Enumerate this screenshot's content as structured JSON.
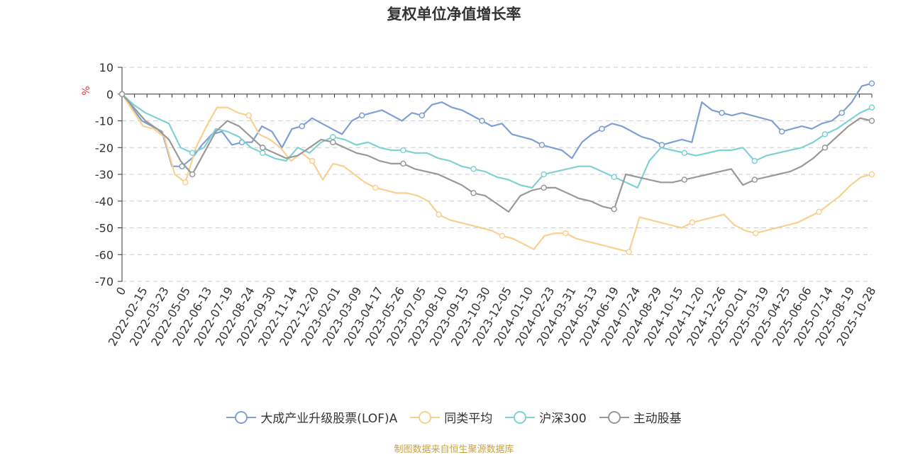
{
  "chart_data": {
    "type": "line",
    "title": "复权单位净值增长率",
    "ylabel": "%",
    "ylim": [
      -70,
      10
    ],
    "yticks": [
      10,
      0,
      -10,
      -20,
      -30,
      -40,
      -50,
      -60,
      -70
    ],
    "grid": true,
    "legend_position": "bottom",
    "x_start_label": "0",
    "x_tick_labels": [
      "2022-02-15",
      "2022-03-23",
      "2022-05-05",
      "2022-06-13",
      "2022-07-19",
      "2022-08-24",
      "2022-09-30",
      "2022-11-14",
      "2022-12-20",
      "2023-02-01",
      "2023-03-09",
      "2023-04-17",
      "2023-05-26",
      "2023-07-05",
      "2023-08-10",
      "2023-09-15",
      "2023-10-30",
      "2023-12-05",
      "2024-01-10",
      "2024-02-23",
      "2024-03-31",
      "2024-05-13",
      "2024-06-19",
      "2024-07-24",
      "2024-08-29",
      "2024-10-15",
      "2024-11-20",
      "2024-12-26",
      "2025-02-01",
      "2025-03-19",
      "2025-04-25",
      "2025-06-06",
      "2025-07-14",
      "2025-08-19",
      "2025-10-28"
    ],
    "series": [
      {
        "name": "大成产业升级股票(LOF)A",
        "color": "#7f9fd4",
        "values": [
          0,
          -5,
          -10,
          -12,
          -14,
          -27,
          -27,
          -24,
          -19,
          -15,
          -14,
          -19,
          -18,
          -18,
          -12,
          -14,
          -20,
          -13,
          -12,
          -9,
          -11,
          -13,
          -15,
          -10,
          -8,
          -7,
          -6,
          -8,
          -10,
          -7,
          -8,
          -4,
          -3,
          -5,
          -6,
          -8,
          -10,
          -12,
          -11,
          -15,
          -16,
          -17,
          -19,
          -20,
          -21,
          -24,
          -18,
          -15,
          -13,
          -11,
          -12,
          -14,
          -16,
          -17,
          -19,
          -18,
          -17,
          -18,
          -3,
          -6,
          -7,
          -8,
          -7,
          -8,
          -9,
          -10,
          -14,
          -13,
          -12,
          -13,
          -11,
          -10,
          -7,
          -3,
          3,
          4
        ]
      },
      {
        "name": "同类平均",
        "color": "#f9d08f",
        "values": [
          0,
          -6,
          -12,
          -13,
          -16,
          -30,
          -33,
          -20,
          -12,
          -5,
          -5,
          -7,
          -8,
          -15,
          -17,
          -20,
          -25,
          -22,
          -25,
          -32,
          -26,
          -27,
          -30,
          -33,
          -35,
          -36,
          -37,
          -37,
          -38,
          -40,
          -45,
          -47,
          -48,
          -49,
          -50,
          -51,
          -53,
          -54,
          -56,
          -58,
          -53,
          -52,
          -52,
          -54,
          -55,
          -56,
          -57,
          -58,
          -59,
          -46,
          -47,
          -48,
          -49,
          -50,
          -48,
          -47,
          -46,
          -45,
          -49,
          -51,
          -52,
          -51,
          -50,
          -49,
          -48,
          -46,
          -44,
          -41,
          -38,
          -34,
          -31,
          -30
        ]
      },
      {
        "name": "沪深300",
        "color": "#7fd1d4",
        "values": [
          0,
          -4,
          -7,
          -9,
          -11,
          -20,
          -22,
          -20,
          -13,
          -14,
          -16,
          -20,
          -22,
          -24,
          -25,
          -20,
          -22,
          -18,
          -16,
          -17,
          -19,
          -18,
          -20,
          -21,
          -21,
          -22,
          -22,
          -24,
          -25,
          -27,
          -28,
          -29,
          -31,
          -32,
          -34,
          -35,
          -30,
          -29,
          -28,
          -27,
          -27,
          -29,
          -31,
          -33,
          -35,
          -25,
          -20,
          -21,
          -22,
          -23,
          -22,
          -21,
          -21,
          -20,
          -25,
          -23,
          -22,
          -21,
          -20,
          -18,
          -15,
          -13,
          -10,
          -7,
          -5
        ]
      },
      {
        "name": "主动股基",
        "color": "#999999",
        "values": [
          0,
          -5,
          -10,
          -13,
          -17,
          -25,
          -30,
          -22,
          -14,
          -10,
          -12,
          -16,
          -20,
          -22,
          -24,
          -23,
          -20,
          -17,
          -18,
          -20,
          -22,
          -23,
          -25,
          -26,
          -26,
          -28,
          -29,
          -30,
          -32,
          -34,
          -37,
          -38,
          -41,
          -44,
          -38,
          -36,
          -35,
          -35,
          -37,
          -39,
          -40,
          -42,
          -43,
          -30,
          -31,
          -32,
          -33,
          -33,
          -32,
          -31,
          -30,
          -29,
          -28,
          -34,
          -32,
          -31,
          -30,
          -29,
          -27,
          -24,
          -20,
          -16,
          -12,
          -9,
          -10
        ]
      }
    ]
  },
  "legend": {
    "items": [
      {
        "label": "大成产业升级股票(LOF)A"
      },
      {
        "label": "同类平均"
      },
      {
        "label": "沪深300"
      },
      {
        "label": "主动股基"
      }
    ]
  },
  "source_note": "制图数据来自恒生聚源数据库"
}
